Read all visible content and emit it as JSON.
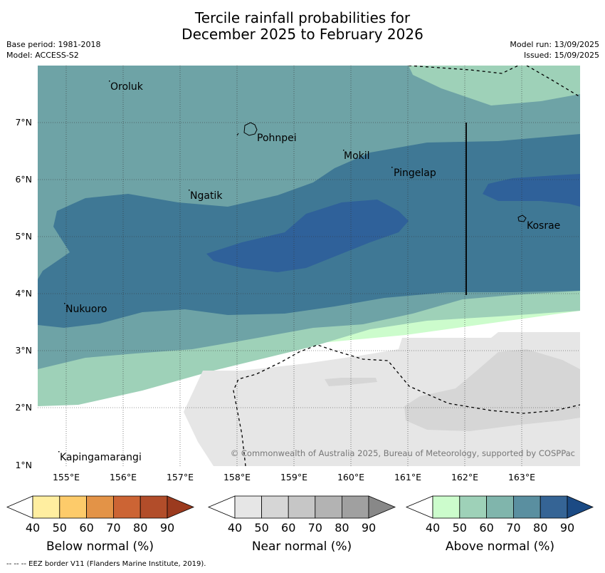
{
  "title": {
    "line1": "Tercile rainfall probabilities for",
    "line2": "December 2025 to February 2026"
  },
  "meta_left": {
    "base_period": "Base period: 1981-2018",
    "model": "Model: ACCESS-S2"
  },
  "meta_right": {
    "model_run": "Model run: 13/09/2025",
    "issued": "Issued: 15/09/2025"
  },
  "map": {
    "lat_labels": [
      "7°N",
      "6°N",
      "5°N",
      "4°N",
      "3°N",
      "2°N",
      "1°N"
    ],
    "lon_labels": [
      "155°E",
      "156°E",
      "157°E",
      "158°E",
      "159°E",
      "160°E",
      "161°E",
      "162°E",
      "163°E"
    ],
    "places": [
      "Oroluk",
      "Pohnpei",
      "Mokil",
      "Pingelap",
      "Ngatik",
      "Kosrae",
      "Nukuoro",
      "Kapingamarangi"
    ],
    "copyright": "© Commonwealth of Australia 2025, Bureau of Meteorology, supported by COSPPac"
  },
  "legends": [
    {
      "title": "Below normal (%)",
      "colors": [
        "#ffeea0",
        "#fdcb6a",
        "#e39347",
        "#cc6434",
        "#b24d2a",
        "#9b3a1e"
      ],
      "ticks": [
        "40",
        "50",
        "60",
        "70",
        "80",
        "90"
      ]
    },
    {
      "title": "Near normal (%)",
      "colors": [
        "#e6e6e6",
        "#d6d6d6",
        "#c6c6c6",
        "#b3b3b3",
        "#a0a0a0",
        "#888888"
      ],
      "ticks": [
        "40",
        "50",
        "60",
        "70",
        "80",
        "90"
      ]
    },
    {
      "title": "Above normal (%)",
      "colors": [
        "#ccfccc",
        "#9ed1b8",
        "#80b5ac",
        "#5a8fa0",
        "#356495",
        "#1b4a84"
      ],
      "ticks": [
        "40",
        "50",
        "60",
        "70",
        "80",
        "90"
      ]
    }
  ],
  "footer": "--  --  -- EEZ border V11 (Flanders Marine Institute, 2019)."
}
